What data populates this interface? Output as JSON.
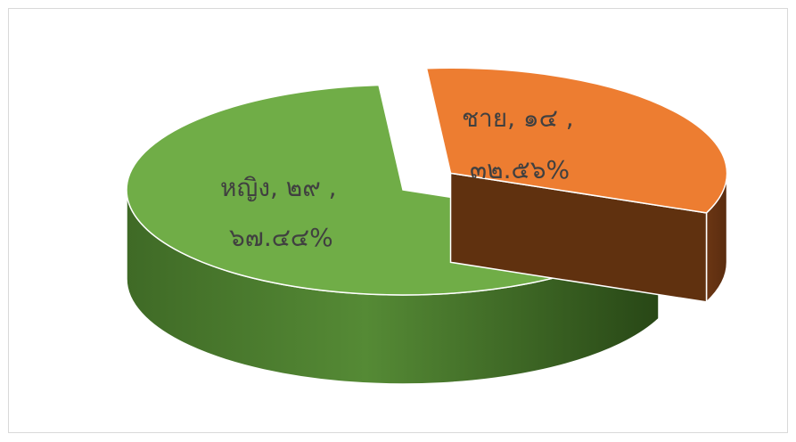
{
  "chart_data": {
    "type": "pie",
    "title": "",
    "three_d": true,
    "legend": "none",
    "slices": [
      {
        "label": "ชาย",
        "value": 14,
        "percent": 32.56,
        "color": "#ED7D31",
        "exploded": true,
        "label_line1": "ชาย,  ๑๔ ,",
        "label_line2": "๓๒.๕๖%"
      },
      {
        "label": "หญิง",
        "value": 29,
        "percent": 67.44,
        "color": "#70AD47",
        "exploded": false,
        "label_line1": "หญิง,  ๒๙ ,",
        "label_line2": "๖๗.๔๔%"
      }
    ]
  }
}
